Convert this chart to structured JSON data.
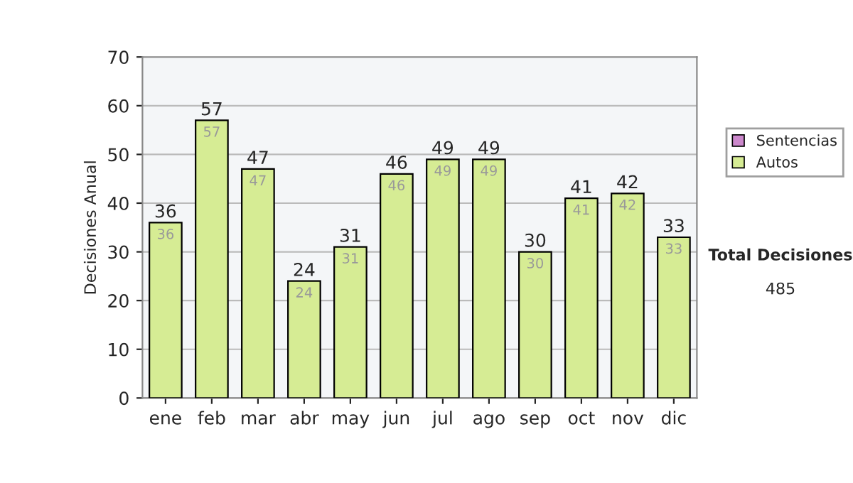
{
  "chart_data": {
    "type": "bar",
    "ylabel": "Decisiones Anual",
    "categories": [
      "ene",
      "feb",
      "mar",
      "abr",
      "may",
      "jun",
      "jul",
      "ago",
      "sep",
      "oct",
      "nov",
      "dic"
    ],
    "series": [
      {
        "name": "Sentencias",
        "color": "#cc88cc",
        "values": [
          0,
          0,
          0,
          0,
          0,
          0,
          0,
          0,
          0,
          0,
          0,
          0
        ]
      },
      {
        "name": "Autos",
        "color": "#d6ec94",
        "values": [
          36,
          57,
          47,
          24,
          31,
          46,
          49,
          49,
          30,
          41,
          42,
          33
        ],
        "value_labels": [
          "36",
          "57",
          "47",
          "24",
          "31",
          "46",
          "49",
          "49",
          "30",
          "41",
          "42",
          "33"
        ]
      }
    ],
    "stacked": true,
    "totals": [
      "36",
      "57",
      "47",
      "24",
      "31",
      "46",
      "49",
      "49",
      "30",
      "41",
      "42",
      "33"
    ],
    "ylim": [
      0,
      70
    ],
    "yticks": [
      0,
      10,
      20,
      30,
      40,
      50,
      60,
      70
    ],
    "grid": "y",
    "legend": "right",
    "annotations": [
      "Total Decisiones",
      "485"
    ]
  }
}
